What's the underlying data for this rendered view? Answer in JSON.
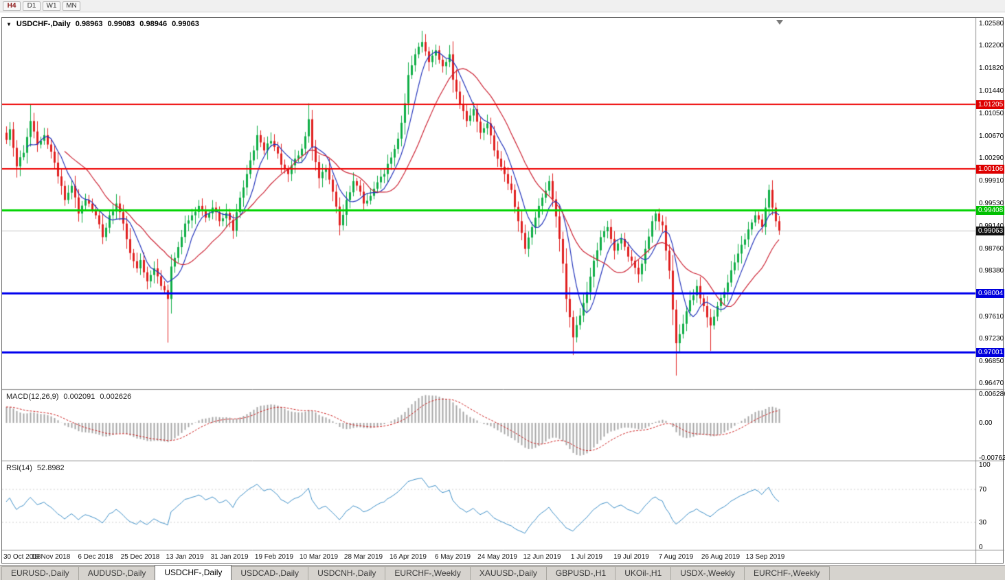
{
  "toolbar": {
    "periods": [
      {
        "label": "H4",
        "highlight": true
      },
      {
        "label": "D1",
        "highlight": false
      },
      {
        "label": "W1",
        "highlight": false
      },
      {
        "label": "MN",
        "highlight": false
      }
    ]
  },
  "header": {
    "symbol": "USDCHF-,Daily",
    "open": "0.98963",
    "high": "0.99083",
    "low": "0.98946",
    "close": "0.99063"
  },
  "macd": {
    "label": "MACD(12,26,9)",
    "value_main": "0.002091",
    "value_signal": "0.002626",
    "axis": [
      "0.006286",
      "0.00",
      "-0.00762"
    ]
  },
  "rsi": {
    "label": "RSI(14)",
    "value": "52.8982",
    "axis": [
      "100",
      "70",
      "30",
      "0"
    ]
  },
  "price_axis": {
    "labels": [
      "1.02580",
      "1.02200",
      "1.01820",
      "1.01440",
      "1.01050",
      "1.00670",
      "1.00290",
      "0.99910",
      "0.99530",
      "0.99140",
      "0.98760",
      "0.98380",
      "0.97610",
      "0.97230",
      "0.96850",
      "0.96470"
    ],
    "badges": [
      {
        "value": "1.01205",
        "color": "#dd0000"
      },
      {
        "value": "1.00106",
        "color": "#dd0000"
      },
      {
        "value": "0.99408",
        "color": "#00c000"
      },
      {
        "value": "0.98004",
        "color": "#0000dd"
      },
      {
        "value": "0.97001",
        "color": "#0000dd"
      },
      {
        "value": "0.99063",
        "color": "#111111"
      }
    ]
  },
  "dates": [
    "30 Oct 2018",
    "18 Nov 2018",
    "6 Dec 2018",
    "25 Dec 2018",
    "13 Jan 2019",
    "31 Jan 2019",
    "19 Feb 2019",
    "10 Mar 2019",
    "28 Mar 2019",
    "16 Apr 2019",
    "6 May 2019",
    "24 May 2019",
    "12 Jun 2019",
    "1 Jul 2019",
    "19 Jul 2019",
    "7 Aug 2019",
    "26 Aug 2019",
    "13 Sep 2019"
  ],
  "tabs": {
    "active_index": 2,
    "items": [
      "EURUSD-,Daily",
      "AUDUSD-,Daily",
      "USDCHF-,Daily",
      "USDCAD-,Daily",
      "USDCNH-,Daily",
      "EURCHF-,Weekly",
      "XAUUSD-,Daily",
      "GBPUSD-,H1",
      "UKOil-,H1",
      "USDX-,Weekly",
      "EURCHF-,Weekly"
    ]
  },
  "chart_data": {
    "type": "candlestick",
    "symbol": "USDCHF-",
    "timeframe": "Daily",
    "ohlc": {
      "open": 0.98963,
      "high": 0.99083,
      "low": 0.98946,
      "close": 0.99063
    },
    "ylim": [
      0.9637,
      1.0267
    ],
    "current_price": 0.99063,
    "hlines": [
      {
        "price": 1.01205,
        "color": "#ee0000",
        "width": 2
      },
      {
        "price": 1.00106,
        "color": "#ee0000",
        "width": 2
      },
      {
        "price": 0.99408,
        "color": "#00d300",
        "width": 3
      },
      {
        "price": 0.98004,
        "color": "#0000ee",
        "width": 3
      },
      {
        "price": 0.97001,
        "color": "#0000ee",
        "width": 3
      }
    ],
    "candles_count": 226,
    "x_label_step": 13,
    "x_labels": [
      "30 Oct 2018",
      "18 Nov 2018",
      "6 Dec 2018",
      "25 Dec 2018",
      "13 Jan 2019",
      "31 Jan 2019",
      "19 Feb 2019",
      "10 Mar 2019",
      "28 Mar 2019",
      "16 Apr 2019",
      "6 May 2019",
      "24 May 2019",
      "12 Jun 2019",
      "1 Jul 2019",
      "19 Jul 2019",
      "7 Aug 2019",
      "26 Aug 2019",
      "13 Sep 2019"
    ],
    "close_anchors": [
      [
        0,
        1.006
      ],
      [
        1,
        1.0078
      ],
      [
        3,
        1.0015
      ],
      [
        5,
        1.0038
      ],
      [
        7,
        1.0092
      ],
      [
        9,
        1.0052
      ],
      [
        11,
        1.0068
      ],
      [
        13,
        1.004
      ],
      [
        15,
        0.9998
      ],
      [
        17,
        0.9958
      ],
      [
        19,
        0.9982
      ],
      [
        21,
        0.9935
      ],
      [
        23,
        0.9958
      ],
      [
        26,
        0.9932
      ],
      [
        28,
        0.9895
      ],
      [
        30,
        0.9932
      ],
      [
        32,
        0.9952
      ],
      [
        34,
        0.9918
      ],
      [
        36,
        0.9868
      ],
      [
        38,
        0.9842
      ],
      [
        39,
        0.9856
      ],
      [
        41,
        0.982
      ],
      [
        43,
        0.9842
      ],
      [
        45,
        0.9812
      ],
      [
        47,
        0.979
      ],
      [
        48,
        0.9845
      ],
      [
        50,
        0.9878
      ],
      [
        52,
        0.9918
      ],
      [
        54,
        0.9932
      ],
      [
        56,
        0.9948
      ],
      [
        58,
        0.9928
      ],
      [
        60,
        0.9945
      ],
      [
        62,
        0.9922
      ],
      [
        64,
        0.9936
      ],
      [
        66,
        0.9906
      ],
      [
        68,
        0.9962
      ],
      [
        70,
        1.0002
      ],
      [
        72,
        1.0042
      ],
      [
        73,
        1.0068
      ],
      [
        75,
        1.0042
      ],
      [
        77,
        1.0058
      ],
      [
        78,
        1.0048
      ],
      [
        80,
        1.0018
      ],
      [
        82,
        1.0002
      ],
      [
        84,
        1.0028
      ],
      [
        86,
        1.0045
      ],
      [
        88,
        1.0095
      ],
      [
        89,
        1.0048
      ],
      [
        91,
        0.9995
      ],
      [
        93,
        1.0012
      ],
      [
        95,
        0.9972
      ],
      [
        97,
        0.9915
      ],
      [
        99,
        0.9958
      ],
      [
        101,
        0.999
      ],
      [
        103,
        0.9972
      ],
      [
        104,
        0.9952
      ],
      [
        106,
        0.9965
      ],
      [
        108,
        0.9988
      ],
      [
        110,
        1.0002
      ],
      [
        112,
        1.003
      ],
      [
        114,
        1.0062
      ],
      [
        116,
        1.0122
      ],
      [
        117,
        1.017
      ],
      [
        119,
        1.0205
      ],
      [
        121,
        1.0226
      ],
      [
        123,
        1.0192
      ],
      [
        125,
        1.0212
      ],
      [
        127,
        1.0185
      ],
      [
        129,
        1.0205
      ],
      [
        130,
        1.0162
      ],
      [
        132,
        1.012
      ],
      [
        134,
        1.0092
      ],
      [
        136,
        1.0112
      ],
      [
        138,
        1.0072
      ],
      [
        140,
        1.0088
      ],
      [
        142,
        1.0042
      ],
      [
        143,
        1.0028
      ],
      [
        145,
        1.0002
      ],
      [
        147,
        0.9975
      ],
      [
        149,
        0.9922
      ],
      [
        151,
        0.9875
      ],
      [
        153,
        0.9912
      ],
      [
        155,
        0.9948
      ],
      [
        156,
        0.9962
      ],
      [
        158,
        0.999
      ],
      [
        160,
        0.993
      ],
      [
        162,
        0.985
      ],
      [
        163,
        0.979
      ],
      [
        165,
        0.9725
      ],
      [
        167,
        0.9762
      ],
      [
        169,
        0.9802
      ],
      [
        171,
        0.9855
      ],
      [
        173,
        0.9895
      ],
      [
        175,
        0.9912
      ],
      [
        177,
        0.9872
      ],
      [
        179,
        0.9892
      ],
      [
        181,
        0.9862
      ],
      [
        182,
        0.9855
      ],
      [
        184,
        0.9832
      ],
      [
        186,
        0.9875
      ],
      [
        188,
        0.9922
      ],
      [
        189,
        0.9935
      ],
      [
        191,
        0.9915
      ],
      [
        192,
        0.9872
      ],
      [
        193,
        0.9838
      ],
      [
        194,
        0.9772
      ],
      [
        195,
        0.9715
      ],
      [
        197,
        0.9748
      ],
      [
        199,
        0.9788
      ],
      [
        201,
        0.9812
      ],
      [
        203,
        0.9778
      ],
      [
        205,
        0.9745
      ],
      [
        207,
        0.9778
      ],
      [
        208,
        0.9792
      ],
      [
        210,
        0.9818
      ],
      [
        212,
        0.9852
      ],
      [
        214,
        0.9882
      ],
      [
        216,
        0.9908
      ],
      [
        218,
        0.9932
      ],
      [
        220,
        0.9912
      ],
      [
        221,
        0.9945
      ],
      [
        222,
        0.9975
      ],
      [
        223,
        0.9945
      ],
      [
        224,
        0.9922
      ],
      [
        225,
        0.99063
      ]
    ],
    "spike_highs": [
      [
        7,
        1.012
      ],
      [
        88,
        1.0122
      ],
      [
        121,
        1.0245
      ],
      [
        222,
        0.9984
      ]
    ],
    "spike_lows": [
      [
        47,
        0.9716
      ],
      [
        165,
        0.9695
      ],
      [
        195,
        0.966
      ],
      [
        205,
        0.9702
      ]
    ],
    "ma_fast": {
      "period": 7,
      "color": "#2233bb"
    },
    "ma_slow": {
      "period": 18,
      "color": "#cc2233"
    },
    "candle_colors": {
      "up": "#0fae46",
      "down": "#e02020"
    },
    "macd": {
      "fast": 12,
      "slow": 26,
      "signal": 9,
      "ylim": [
        -0.0082,
        0.007
      ],
      "hist_color": "#a6a6a6",
      "signal_color": "#cc2222",
      "main": 0.002091,
      "signal_value": 0.002626
    },
    "rsi": {
      "period": 14,
      "color": "#3e8fc7",
      "levels": [
        30,
        70
      ],
      "value": 52.8982
    }
  }
}
